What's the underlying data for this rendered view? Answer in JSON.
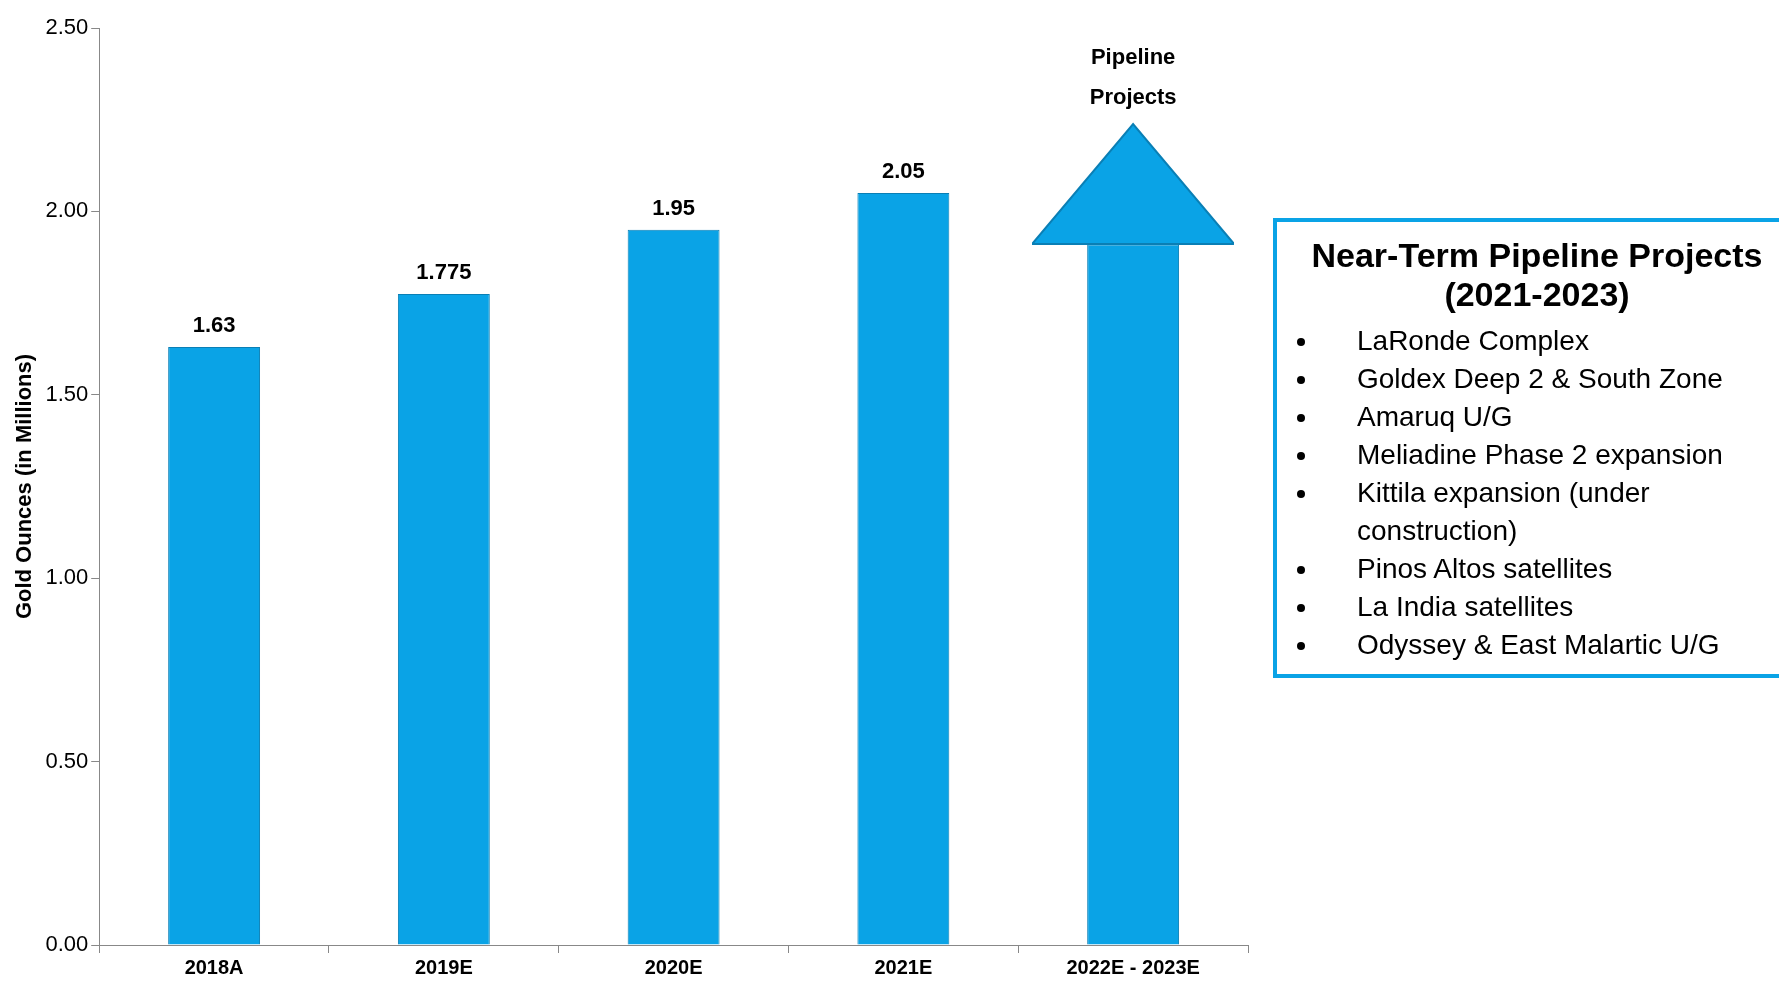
{
  "chart_data": {
    "type": "bar",
    "ylabel": "Gold Ounces (in Millions)",
    "categories": [
      "2018A",
      "2019E",
      "2020E",
      "2021E",
      "2022E - 2023E"
    ],
    "values": [
      1.63,
      1.775,
      1.95,
      2.05,
      1.91
    ],
    "value_labels": [
      "1.63",
      "1.775",
      "1.95",
      "2.05",
      null
    ],
    "color": "#0aa3e6",
    "ylim": [
      0,
      2.5
    ],
    "yticks": [
      {
        "value": 0,
        "label": "0.00"
      },
      {
        "value": 0.5,
        "label": "0.50"
      },
      {
        "value": 1,
        "label": "1.00"
      },
      {
        "value": 1.5,
        "label": "1.50"
      },
      {
        "value": 2,
        "label": "2.00"
      },
      {
        "value": 2.5,
        "label": "2.50"
      }
    ],
    "grid": false,
    "legend": false,
    "annotations": [
      "Pipeline\nProjects",
      "Near-Term Pipeline Projects (2021-2023)",
      "LaRonde Complex",
      "Goldex Deep 2 & South Zone",
      "Amaruq U/G",
      "Meliadine Phase 2 expansion",
      "Kittila expansion (under construction)",
      "Pinos Altos satellites",
      "La India satellites",
      "Odyssey & East Malartic U/G"
    ]
  }
}
